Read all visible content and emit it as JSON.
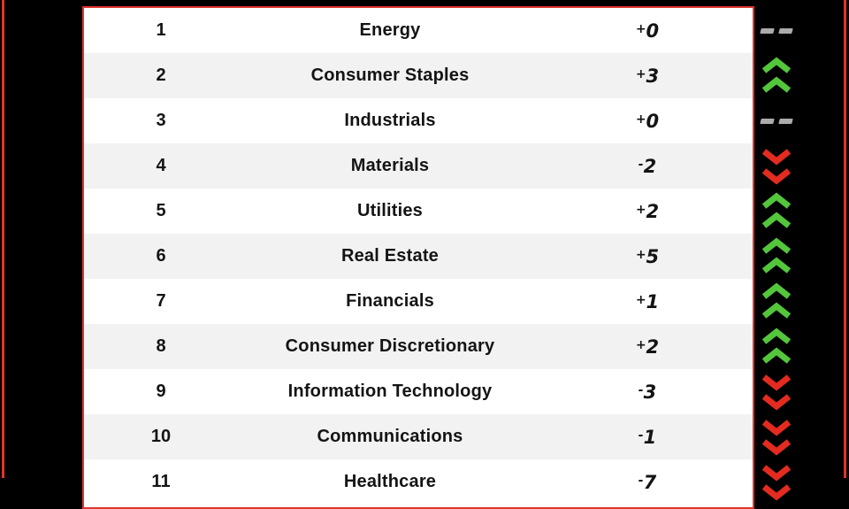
{
  "colors": {
    "accent_red": "#e0352b",
    "up_green": "#53c63c",
    "down_red": "#e32b20",
    "flat_gray": "#ababab",
    "row_alt": "#f2f2f2",
    "card_bg": "#ffffff",
    "background": "#000000",
    "text": "#141414"
  },
  "chart_data": {
    "type": "table",
    "title": "",
    "rows": [
      {
        "rank": "1",
        "name": "Energy",
        "change": "+0",
        "trend": "flat"
      },
      {
        "rank": "2",
        "name": "Consumer Staples",
        "change": "+3",
        "trend": "up"
      },
      {
        "rank": "3",
        "name": "Industrials",
        "change": "+0",
        "trend": "flat"
      },
      {
        "rank": "4",
        "name": "Materials",
        "change": "-2",
        "trend": "down"
      },
      {
        "rank": "5",
        "name": "Utilities",
        "change": "+2",
        "trend": "up"
      },
      {
        "rank": "6",
        "name": "Real Estate",
        "change": "+5",
        "trend": "up"
      },
      {
        "rank": "7",
        "name": "Financials",
        "change": "+1",
        "trend": "up"
      },
      {
        "rank": "8",
        "name": "Consumer Discretionary",
        "change": "+2",
        "trend": "up"
      },
      {
        "rank": "9",
        "name": "Information Technology",
        "change": "-3",
        "trend": "down"
      },
      {
        "rank": "10",
        "name": "Communications",
        "change": "-1",
        "trend": "down"
      },
      {
        "rank": "11",
        "name": "Healthcare",
        "change": "-7",
        "trend": "down"
      }
    ]
  }
}
